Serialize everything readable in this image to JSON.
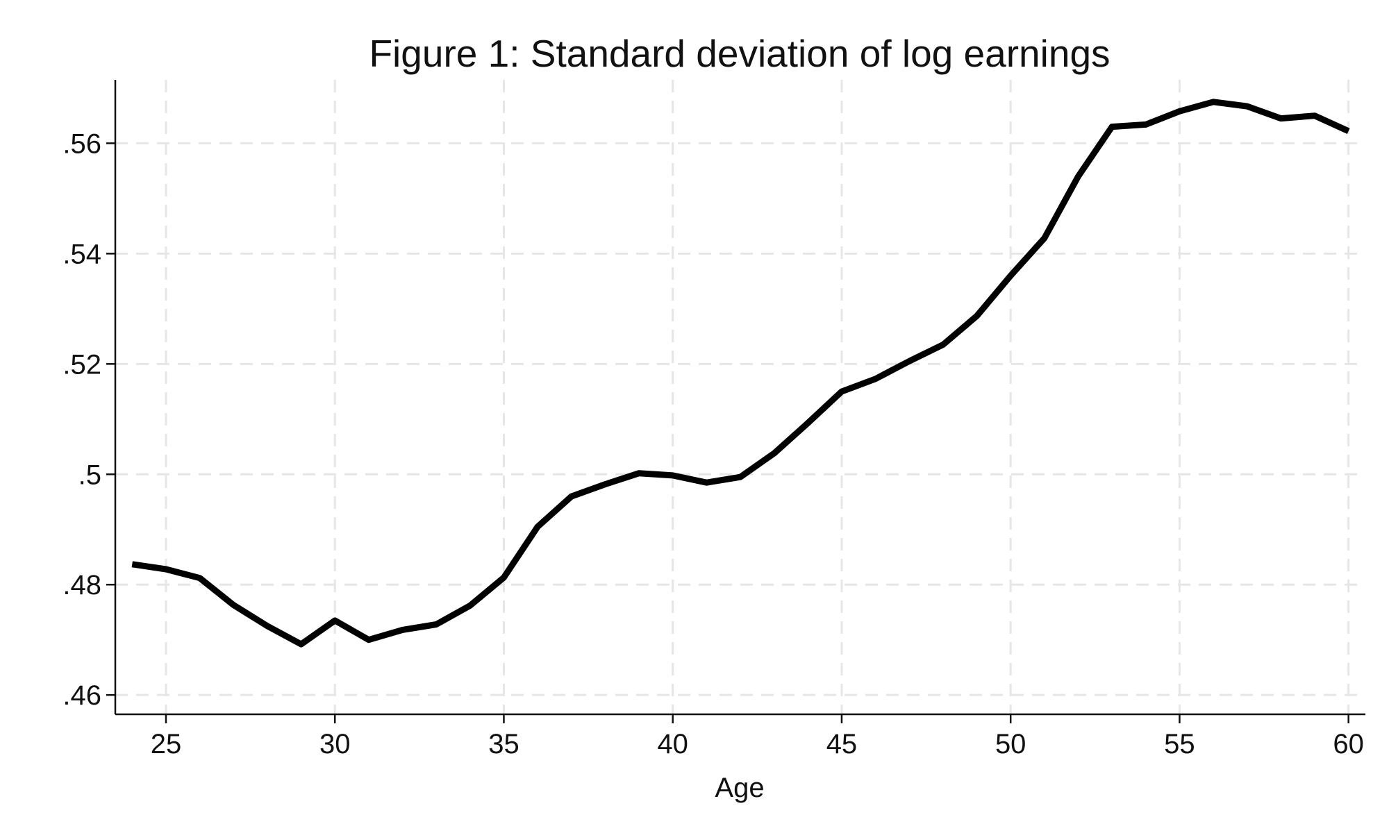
{
  "chart_data": {
    "type": "line",
    "title": "Figure 1: Standard deviation of log earnings",
    "xlabel": "Age",
    "ylabel": "",
    "xlim": [
      23.5,
      60.5
    ],
    "ylim": [
      0.4565,
      0.5715
    ],
    "xticks": [
      25,
      30,
      35,
      40,
      45,
      50,
      55,
      60
    ],
    "xtick_labels": [
      "25",
      "30",
      "35",
      "40",
      "45",
      "50",
      "55",
      "60"
    ],
    "yticks": [
      0.46,
      0.48,
      0.5,
      0.52,
      0.54,
      0.56
    ],
    "ytick_labels": [
      ".46",
      ".48",
      ".5",
      ".52",
      ".54",
      ".56"
    ],
    "grid": true,
    "legend": "none",
    "series": [
      {
        "color": "#000000",
        "x": [
          24,
          25,
          26,
          27,
          28,
          29,
          30,
          31,
          32,
          33,
          34,
          35,
          36,
          37,
          38,
          39,
          40,
          41,
          42,
          43,
          44,
          45,
          46,
          47,
          48,
          49,
          50,
          51,
          52,
          53,
          54,
          55,
          56,
          57,
          58,
          59,
          60
        ],
        "y": [
          0.4837,
          0.4828,
          0.4812,
          0.4763,
          0.4725,
          0.4692,
          0.4735,
          0.47,
          0.4718,
          0.4728,
          0.4762,
          0.4813,
          0.4905,
          0.496,
          0.4982,
          0.5002,
          0.4998,
          0.4985,
          0.4995,
          0.5038,
          0.5093,
          0.515,
          0.5173,
          0.5205,
          0.5235,
          0.5287,
          0.536,
          0.5428,
          0.554,
          0.563,
          0.5634,
          0.5658,
          0.5675,
          0.5667,
          0.5645,
          0.565,
          0.5622
        ]
      }
    ]
  }
}
